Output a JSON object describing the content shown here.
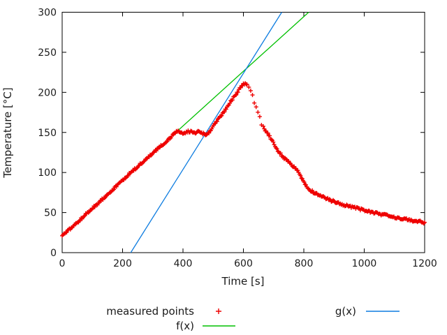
{
  "chart_data": {
    "type": "scatter",
    "title": "",
    "xlabel": "Time [s]",
    "ylabel": "Temperature [°C]",
    "xlim": [
      0,
      1200
    ],
    "ylim": [
      0,
      300
    ],
    "x_ticks": [
      0,
      200,
      400,
      600,
      800,
      1000,
      1200
    ],
    "y_ticks": [
      0,
      50,
      100,
      150,
      200,
      250,
      300
    ],
    "grid": false,
    "legend_position": "below-plot, two columns",
    "series": [
      {
        "name": "measured points",
        "style": "points",
        "marker": "plus",
        "color": "#ee0000",
        "sample_interval_s": 3,
        "noise_c": 1.4,
        "sparse_window": [
          612,
          665
        ],
        "sparse_interval_s": 6,
        "sparse_noise_c": 2.5,
        "keypoints": [
          [
            0,
            22
          ],
          [
            10,
            24
          ],
          [
            30,
            31
          ],
          [
            60,
            41
          ],
          [
            90,
            52
          ],
          [
            120,
            62
          ],
          [
            150,
            73
          ],
          [
            180,
            83
          ],
          [
            210,
            94
          ],
          [
            240,
            104
          ],
          [
            270,
            114
          ],
          [
            300,
            124
          ],
          [
            330,
            134
          ],
          [
            360,
            144
          ],
          [
            378,
            151
          ],
          [
            386,
            152
          ],
          [
            394,
            149.5
          ],
          [
            402,
            148
          ],
          [
            410,
            150
          ],
          [
            418,
            151.5
          ],
          [
            426,
            151
          ],
          [
            434,
            148.5
          ],
          [
            442,
            150
          ],
          [
            450,
            151.5
          ],
          [
            458,
            150.5
          ],
          [
            466,
            148.5
          ],
          [
            474,
            147.5
          ],
          [
            481,
            147.5
          ],
          [
            490,
            152
          ],
          [
            505,
            160
          ],
          [
            520,
            168
          ],
          [
            535,
            176
          ],
          [
            550,
            184
          ],
          [
            565,
            192
          ],
          [
            578,
            199
          ],
          [
            588,
            205
          ],
          [
            596,
            209
          ],
          [
            602,
            210.5
          ],
          [
            608,
            210
          ],
          [
            614,
            207.5
          ],
          [
            622,
            202
          ],
          [
            630,
            195
          ],
          [
            638,
            186
          ],
          [
            646,
            177
          ],
          [
            653,
            169
          ],
          [
            660,
            161
          ],
          [
            670,
            154
          ],
          [
            680,
            149
          ],
          [
            695,
            140
          ],
          [
            710,
            129
          ],
          [
            725,
            122
          ],
          [
            740,
            116
          ],
          [
            755,
            111
          ],
          [
            770,
            106
          ],
          [
            780,
            102
          ],
          [
            788,
            97
          ],
          [
            796,
            91
          ],
          [
            804,
            86
          ],
          [
            812,
            81
          ],
          [
            820,
            78
          ],
          [
            835,
            75
          ],
          [
            850,
            72
          ],
          [
            870,
            68.5
          ],
          [
            890,
            65
          ],
          [
            910,
            63
          ],
          [
            930,
            60
          ],
          [
            950,
            58
          ],
          [
            975,
            55.5
          ],
          [
            1000,
            53
          ],
          [
            1030,
            50
          ],
          [
            1060,
            47.5
          ],
          [
            1090,
            45
          ],
          [
            1115,
            43.5
          ],
          [
            1140,
            41.5
          ],
          [
            1165,
            39.5
          ],
          [
            1185,
            38.5
          ],
          [
            1200,
            37.5
          ]
        ]
      },
      {
        "name": "f(x)",
        "style": "line",
        "color": "#00c000",
        "slope": 0.341,
        "intercept": 21.7
      },
      {
        "name": "g(x)",
        "style": "line",
        "color": "#0d7ce0",
        "slope": 0.6,
        "intercept": -136.2
      }
    ]
  }
}
